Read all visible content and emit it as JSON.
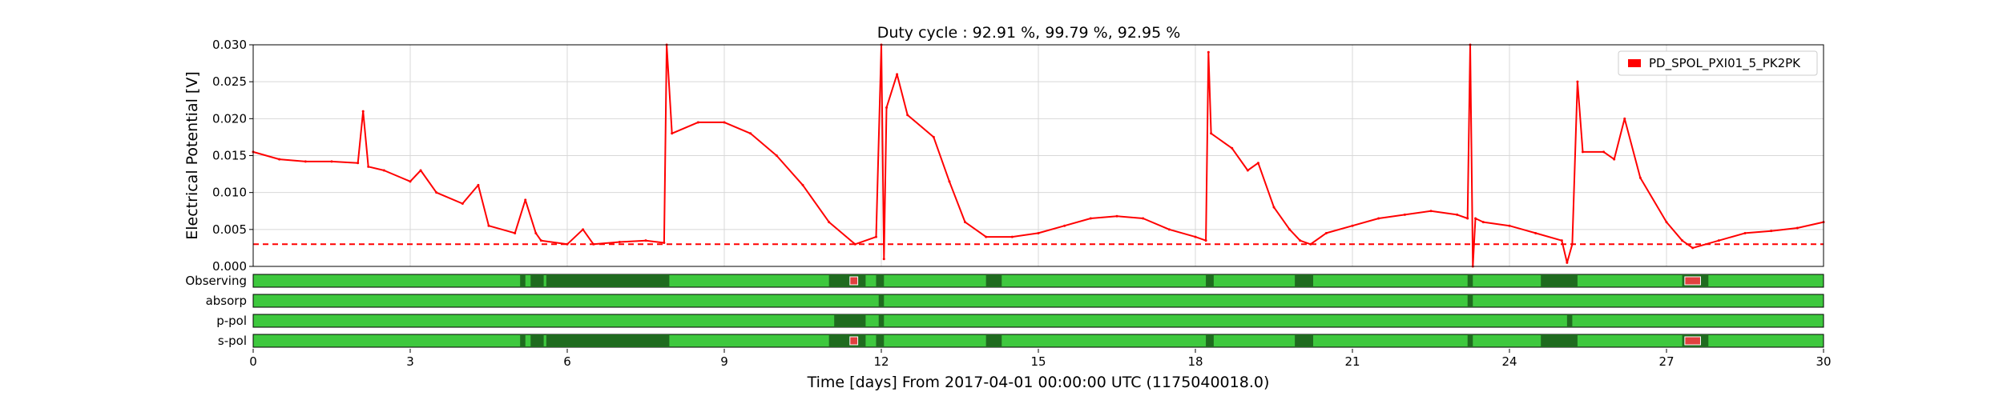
{
  "chart_data": {
    "type": "line",
    "title": "Duty cycle : 92.91 %, 99.79 %, 92.95 %",
    "xlabel": "Time [days] From 2017-04-01 00:00:00 UTC (1175040018.0)",
    "ylabel": "Electrical Potential [V]",
    "xlim": [
      0,
      30
    ],
    "ylim": [
      0,
      0.03
    ],
    "grid": true,
    "legend_position": "top-right",
    "x_ticks": [
      "0",
      "3",
      "6",
      "9",
      "12",
      "15",
      "18",
      "21",
      "24",
      "27",
      "30"
    ],
    "y_ticks": [
      "0.000",
      "0.005",
      "0.010",
      "0.015",
      "0.020",
      "0.025",
      "0.030"
    ],
    "threshold": {
      "value": 0.003,
      "style": "dashed",
      "color": "#ff0000"
    },
    "series": [
      {
        "name": "PD_SPOL_PXI01_5_PK2PK",
        "color": "#ff0000",
        "points": [
          [
            0.0,
            0.0155
          ],
          [
            0.5,
            0.0145
          ],
          [
            1.0,
            0.0142
          ],
          [
            1.5,
            0.0142
          ],
          [
            2.0,
            0.014
          ],
          [
            2.1,
            0.021
          ],
          [
            2.2,
            0.0135
          ],
          [
            2.5,
            0.013
          ],
          [
            3.0,
            0.0115
          ],
          [
            3.2,
            0.013
          ],
          [
            3.5,
            0.01
          ],
          [
            4.0,
            0.0085
          ],
          [
            4.3,
            0.011
          ],
          [
            4.5,
            0.0055
          ],
          [
            5.0,
            0.0045
          ],
          [
            5.2,
            0.009
          ],
          [
            5.4,
            0.0045
          ],
          [
            5.5,
            0.0035
          ],
          [
            6.0,
            0.003
          ],
          [
            6.3,
            0.005
          ],
          [
            6.5,
            0.003
          ],
          [
            7.0,
            0.0033
          ],
          [
            7.5,
            0.0035
          ],
          [
            7.85,
            0.0032
          ],
          [
            7.9,
            0.03
          ],
          [
            8.0,
            0.018
          ],
          [
            8.5,
            0.0195
          ],
          [
            9.0,
            0.0195
          ],
          [
            9.5,
            0.018
          ],
          [
            10.0,
            0.015
          ],
          [
            10.5,
            0.011
          ],
          [
            11.0,
            0.006
          ],
          [
            11.5,
            0.003
          ],
          [
            11.9,
            0.004
          ],
          [
            12.0,
            0.03
          ],
          [
            12.05,
            0.001
          ],
          [
            12.1,
            0.0215
          ],
          [
            12.3,
            0.026
          ],
          [
            12.5,
            0.0205
          ],
          [
            13.0,
            0.0175
          ],
          [
            13.3,
            0.0115
          ],
          [
            13.6,
            0.006
          ],
          [
            14.0,
            0.004
          ],
          [
            14.5,
            0.004
          ],
          [
            15.0,
            0.0045
          ],
          [
            15.5,
            0.0055
          ],
          [
            16.0,
            0.0065
          ],
          [
            16.5,
            0.0068
          ],
          [
            17.0,
            0.0065
          ],
          [
            17.5,
            0.005
          ],
          [
            18.0,
            0.004
          ],
          [
            18.2,
            0.0035
          ],
          [
            18.25,
            0.029
          ],
          [
            18.3,
            0.018
          ],
          [
            18.7,
            0.016
          ],
          [
            19.0,
            0.013
          ],
          [
            19.2,
            0.014
          ],
          [
            19.5,
            0.008
          ],
          [
            19.8,
            0.005
          ],
          [
            20.0,
            0.0035
          ],
          [
            20.2,
            0.003
          ],
          [
            20.5,
            0.0045
          ],
          [
            21.0,
            0.0055
          ],
          [
            21.5,
            0.0065
          ],
          [
            22.0,
            0.007
          ],
          [
            22.5,
            0.0075
          ],
          [
            23.0,
            0.007
          ],
          [
            23.2,
            0.0065
          ],
          [
            23.25,
            0.03
          ],
          [
            23.3,
            0.0
          ],
          [
            23.35,
            0.0065
          ],
          [
            23.5,
            0.006
          ],
          [
            24.0,
            0.0055
          ],
          [
            24.5,
            0.0045
          ],
          [
            25.0,
            0.0035
          ],
          [
            25.1,
            0.0005
          ],
          [
            25.2,
            0.003
          ],
          [
            25.3,
            0.025
          ],
          [
            25.4,
            0.0155
          ],
          [
            25.8,
            0.0155
          ],
          [
            26.0,
            0.0145
          ],
          [
            26.2,
            0.02
          ],
          [
            26.5,
            0.012
          ],
          [
            27.0,
            0.006
          ],
          [
            27.3,
            0.0035
          ],
          [
            27.5,
            0.0025
          ],
          [
            28.0,
            0.0035
          ],
          [
            28.5,
            0.0045
          ],
          [
            29.0,
            0.0048
          ],
          [
            29.5,
            0.0052
          ],
          [
            30.0,
            0.006
          ]
        ]
      }
    ],
    "segment_rows": [
      {
        "label": "Observing",
        "base_color": "#3ec83e",
        "dark_color": "#1f6b1f",
        "marker_color": "#e04040",
        "dark_segments": [
          [
            5.1,
            5.2
          ],
          [
            5.3,
            5.55
          ],
          [
            5.6,
            7.95
          ],
          [
            11.0,
            11.7
          ],
          [
            11.9,
            12.05
          ],
          [
            14.0,
            14.3
          ],
          [
            18.2,
            18.35
          ],
          [
            19.9,
            20.25
          ],
          [
            23.2,
            23.3
          ],
          [
            24.6,
            25.3
          ],
          [
            27.3,
            27.8
          ]
        ],
        "markers": [
          [
            11.4,
            11.55
          ],
          [
            27.35,
            27.65
          ]
        ]
      },
      {
        "label": "absorp",
        "base_color": "#3ec83e",
        "dark_color": "#1f6b1f",
        "marker_color": "#e04040",
        "dark_segments": [
          [
            11.95,
            12.05
          ],
          [
            23.2,
            23.3
          ]
        ],
        "markers": []
      },
      {
        "label": "p-pol",
        "base_color": "#3ec83e",
        "dark_color": "#1f6b1f",
        "marker_color": "#e04040",
        "dark_segments": [
          [
            11.1,
            11.7
          ],
          [
            11.95,
            12.05
          ],
          [
            25.1,
            25.2
          ]
        ],
        "markers": []
      },
      {
        "label": "s-pol",
        "base_color": "#3ec83e",
        "dark_color": "#1f6b1f",
        "marker_color": "#e04040",
        "dark_segments": [
          [
            5.1,
            5.2
          ],
          [
            5.3,
            5.55
          ],
          [
            5.6,
            7.95
          ],
          [
            11.0,
            11.7
          ],
          [
            11.9,
            12.05
          ],
          [
            14.0,
            14.3
          ],
          [
            18.2,
            18.35
          ],
          [
            19.9,
            20.25
          ],
          [
            23.2,
            23.3
          ],
          [
            24.6,
            25.3
          ],
          [
            27.3,
            27.8
          ]
        ],
        "markers": [
          [
            11.4,
            11.55
          ],
          [
            27.35,
            27.65
          ]
        ]
      }
    ]
  }
}
